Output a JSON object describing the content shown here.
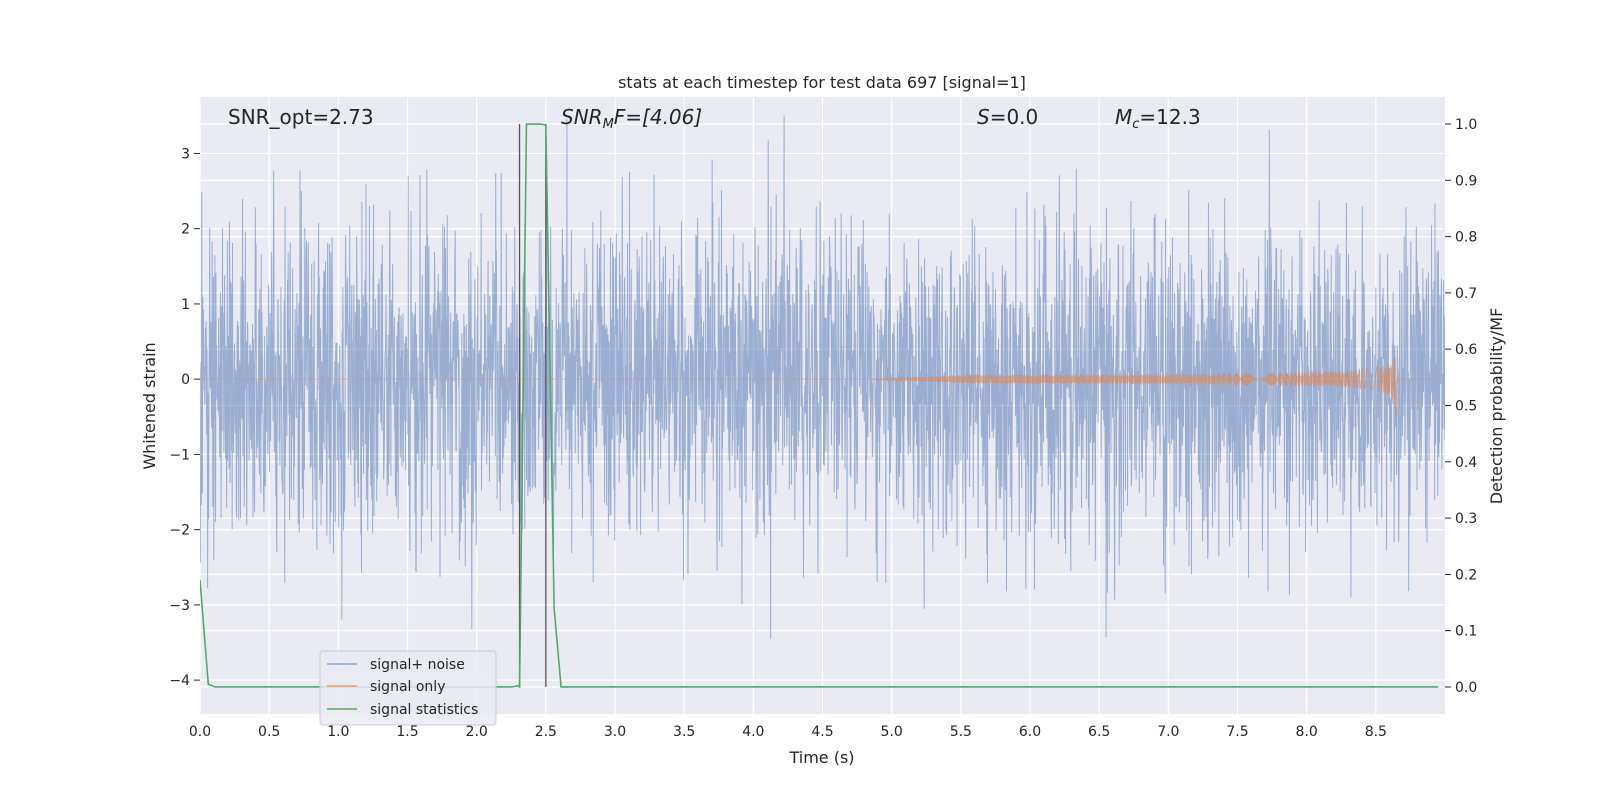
{
  "chart_data": {
    "type": "line",
    "title": "stats at each timestep for test data 697 [signal=1]",
    "xlabel": "Time (s)",
    "ylabel": "Whitened strain",
    "y2label": "Detection probability/MF",
    "xlim": [
      0.0,
      9.0
    ],
    "ylim": [
      -4.45,
      3.75
    ],
    "y2lim": [
      -0.048,
      1.048
    ],
    "xticks": [
      0.0,
      0.5,
      1.0,
      1.5,
      2.0,
      2.5,
      3.0,
      3.5,
      4.0,
      4.5,
      5.0,
      5.5,
      6.0,
      6.5,
      7.0,
      7.5,
      8.0,
      8.5
    ],
    "xtick_labels": [
      "0.0",
      "0.5",
      "1.0",
      "1.5",
      "2.0",
      "2.5",
      "3.0",
      "3.5",
      "4.0",
      "4.5",
      "5.0",
      "5.5",
      "6.0",
      "6.5",
      "7.0",
      "7.5",
      "8.0",
      "8.5"
    ],
    "yticks": [
      -4,
      -3,
      -2,
      -1,
      0,
      1,
      2,
      3
    ],
    "ytick_labels": [
      "−4",
      "−3",
      "−2",
      "−1",
      "0",
      "1",
      "2",
      "3"
    ],
    "y2ticks": [
      0.0,
      0.1,
      0.2,
      0.3,
      0.4,
      0.5,
      0.6,
      0.7,
      0.8,
      0.9,
      1.0
    ],
    "y2tick_labels": [
      "0.0",
      "0.1",
      "0.2",
      "0.3",
      "0.4",
      "0.5",
      "0.6",
      "0.7",
      "0.8",
      "0.9",
      "1.0"
    ],
    "grid": true,
    "legend_position": "lower-left",
    "annotations": {
      "snr_opt": "SNR_opt=2.73",
      "snr_mf_main": "SNR",
      "snr_mf_sub": "M",
      "snr_mf_rest": "F=[4.06]",
      "s_main": "S",
      "s_rest": "=0.0",
      "mc_main": "M",
      "mc_sub": "c",
      "mc_rest": "=12.3"
    },
    "series": [
      {
        "name": "signal+ noise",
        "color": "#4c72b0",
        "axis": "left",
        "description_values": {
          "approx_std": 1.0,
          "min": -3.45,
          "max": 3.5
        }
      },
      {
        "name": "signal only",
        "color": "#dd8452",
        "axis": "left",
        "chirp": {
          "start": 4.8,
          "peak_time": 8.65,
          "peak_amplitude": 0.5
        }
      },
      {
        "name": "signal statistics",
        "color": "#55a868",
        "axis": "right",
        "x": [
          0.0,
          0.06,
          0.11,
          2.25,
          2.3,
          2.31,
          2.36,
          2.46,
          2.5,
          2.56,
          2.61,
          8.95
        ],
        "y": [
          0.19,
          0.005,
          0.0,
          0.0,
          0.002,
          0.0,
          1.0,
          1.0,
          0.998,
          0.14,
          0.0,
          0.0
        ]
      }
    ],
    "vertical_lines": [
      {
        "x": 2.31,
        "color": "#555555"
      },
      {
        "x": 2.5,
        "color": "#555555"
      }
    ]
  }
}
